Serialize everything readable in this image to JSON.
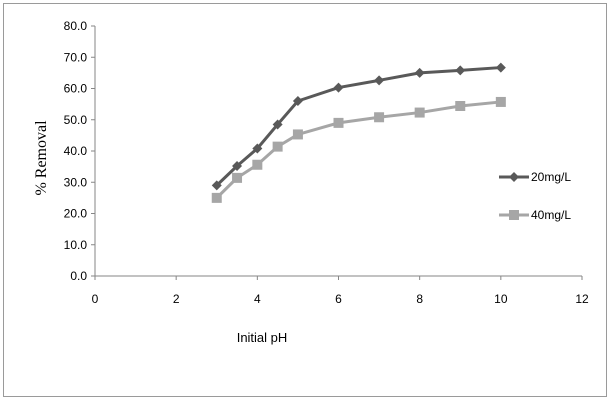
{
  "chart_data": {
    "type": "line",
    "xlabel": "Initial pH",
    "ylabel": "% Removal",
    "xlim": [
      0,
      12
    ],
    "ylim": [
      0,
      80
    ],
    "x_ticks": [
      "0",
      "2",
      "4",
      "6",
      "8",
      "10",
      "12"
    ],
    "y_ticks": [
      "0.0",
      "10.0",
      "20.0",
      "30.0",
      "40.0",
      "50.0",
      "60.0",
      "70.0",
      "80.0"
    ],
    "grid": false,
    "legend_position": "right",
    "series": [
      {
        "name": "20mg/L",
        "color": "#595959",
        "marker": "diamond",
        "points": [
          {
            "x": 3,
            "y": 29.0
          },
          {
            "x": 3.5,
            "y": 35.2
          },
          {
            "x": 4,
            "y": 40.8
          },
          {
            "x": 4.5,
            "y": 48.5
          },
          {
            "x": 5,
            "y": 56.0
          },
          {
            "x": 6,
            "y": 60.3
          },
          {
            "x": 7,
            "y": 62.6
          },
          {
            "x": 8,
            "y": 65.0
          },
          {
            "x": 9,
            "y": 65.8
          },
          {
            "x": 10,
            "y": 66.7
          }
        ]
      },
      {
        "name": "40mg/L",
        "color": "#a6a6a6",
        "marker": "square",
        "points": [
          {
            "x": 3,
            "y": 25.0
          },
          {
            "x": 3.5,
            "y": 31.4
          },
          {
            "x": 4,
            "y": 35.6
          },
          {
            "x": 4.5,
            "y": 41.4
          },
          {
            "x": 5,
            "y": 45.3
          },
          {
            "x": 6,
            "y": 49.0
          },
          {
            "x": 7,
            "y": 50.8
          },
          {
            "x": 8,
            "y": 52.3
          },
          {
            "x": 9,
            "y": 54.4
          },
          {
            "x": 10,
            "y": 55.7
          }
        ]
      }
    ]
  }
}
